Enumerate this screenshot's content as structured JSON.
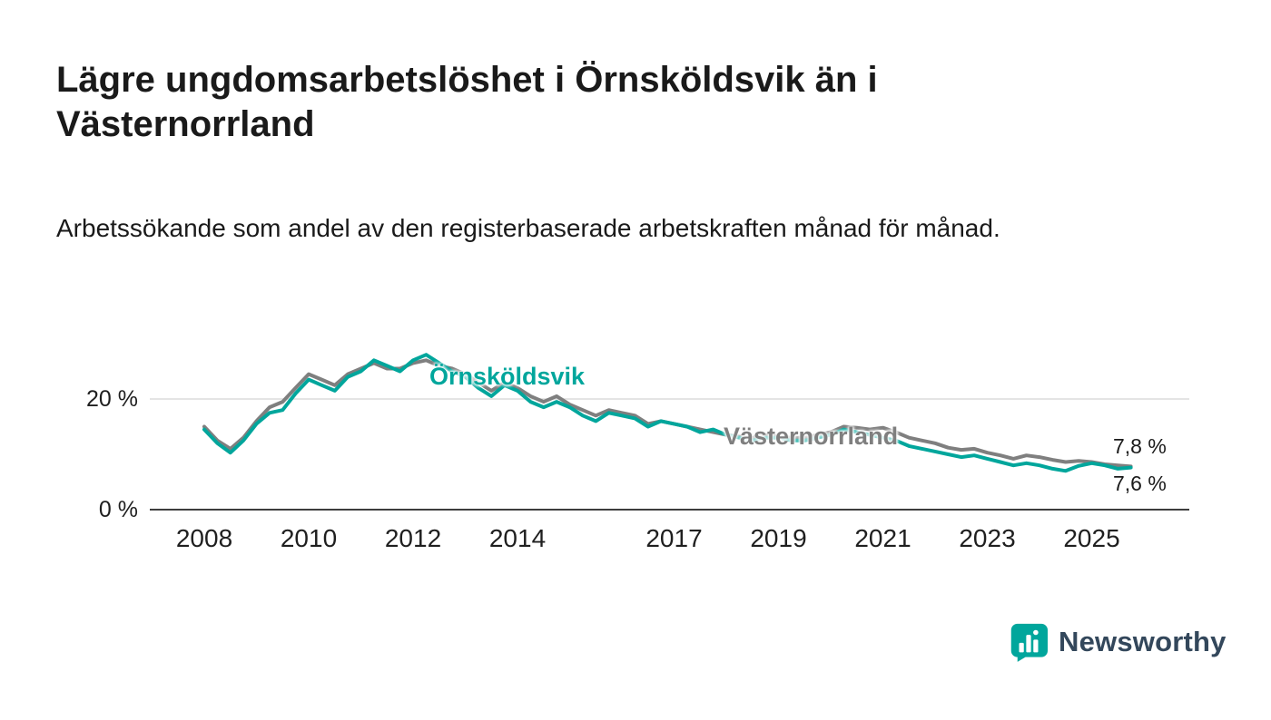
{
  "header": {
    "title": "Lägre ungdomsarbetslöshet i Örnsköldsvik än i Västernorrland",
    "subtitle": "Arbetssökande som andel av den registerbaserade arbetskraften månad för månad."
  },
  "chart_data": {
    "type": "line",
    "title": "Lägre ungdomsarbetslöshet i Örnsköldsvik än i Västernorrland",
    "subtitle": "Arbetssökande som andel av den registerbaserade arbetskraften månad för månad.",
    "unit": "%",
    "xlim": [
      2007.9,
      2026.3
    ],
    "ylim": [
      0,
      32
    ],
    "grid": "horizontal line at 20 % only",
    "legend": "inline series labels on chart",
    "x_ticks": [
      2008,
      2010,
      2012,
      2014,
      2017,
      2019,
      2021,
      2023,
      2025
    ],
    "y_ticks": [
      {
        "value": 0,
        "label": "0 %"
      },
      {
        "value": 20,
        "label": "20 %"
      }
    ],
    "x": [
      2008,
      2008.25,
      2008.5,
      2008.75,
      2009,
      2009.25,
      2009.5,
      2009.75,
      2010,
      2010.25,
      2010.5,
      2010.75,
      2011,
      2011.25,
      2011.5,
      2011.75,
      2012,
      2012.25,
      2012.5,
      2012.75,
      2013,
      2013.25,
      2013.5,
      2013.75,
      2014,
      2014.25,
      2014.5,
      2014.75,
      2015,
      2015.25,
      2015.5,
      2015.75,
      2016,
      2016.25,
      2016.5,
      2016.75,
      2017,
      2017.25,
      2017.5,
      2017.75,
      2018,
      2018.25,
      2018.5,
      2018.75,
      2019,
      2019.25,
      2019.5,
      2019.75,
      2020,
      2020.25,
      2020.5,
      2020.75,
      2021,
      2021.25,
      2021.5,
      2021.75,
      2022,
      2022.25,
      2022.5,
      2022.75,
      2023,
      2023.25,
      2023.5,
      2023.75,
      2024,
      2024.25,
      2024.5,
      2024.75,
      2025,
      2025.25,
      2025.5,
      2025.75
    ],
    "series": [
      {
        "name": "Örnsköldsvik",
        "color": "#00a69c",
        "end_label": "7,6 %",
        "values": [
          14.5,
          12.0,
          10.3,
          12.5,
          15.5,
          17.5,
          18.0,
          21.0,
          23.5,
          22.5,
          21.5,
          24.0,
          25.0,
          27.0,
          26.0,
          25.0,
          27.0,
          28.0,
          26.5,
          25.0,
          24.0,
          22.0,
          20.5,
          22.5,
          21.5,
          19.5,
          18.5,
          19.5,
          18.5,
          17.0,
          16.0,
          17.5,
          17.0,
          16.5,
          15.0,
          16.0,
          15.5,
          15.0,
          14.0,
          14.5,
          13.5,
          13.0,
          12.5,
          13.0,
          13.0,
          12.5,
          12.5,
          13.0,
          13.5,
          14.5,
          14.0,
          13.5,
          13.0,
          12.5,
          11.5,
          11.0,
          10.5,
          10.0,
          9.5,
          9.8,
          9.2,
          8.6,
          8.0,
          8.4,
          8.0,
          7.4,
          7.0,
          7.9,
          8.4,
          8.0,
          7.4,
          7.6
        ]
      },
      {
        "name": "Västernorrland",
        "color": "#7f7f7f",
        "end_label": "7,8 %",
        "values": [
          15.0,
          12.5,
          11.0,
          13.0,
          16.0,
          18.5,
          19.5,
          22.0,
          24.5,
          23.5,
          22.5,
          24.5,
          25.5,
          26.5,
          25.5,
          25.5,
          26.5,
          27.0,
          26.0,
          25.5,
          24.5,
          23.0,
          21.5,
          23.0,
          22.0,
          20.5,
          19.5,
          20.5,
          19.0,
          18.0,
          17.0,
          18.0,
          17.5,
          17.0,
          15.5,
          16.0,
          15.5,
          15.0,
          14.5,
          14.0,
          13.5,
          13.2,
          13.0,
          13.5,
          13.2,
          13.0,
          13.0,
          13.5,
          14.0,
          15.0,
          14.8,
          14.5,
          14.8,
          14.0,
          13.0,
          12.5,
          12.0,
          11.2,
          10.8,
          11.0,
          10.3,
          9.8,
          9.2,
          9.8,
          9.5,
          9.0,
          8.6,
          8.8,
          8.6,
          8.2,
          8.0,
          7.8
        ]
      }
    ]
  },
  "branding": {
    "name": "Newsworthy",
    "icon": "newsworthy-logo-icon",
    "icon_color": "#00a69c",
    "text_color": "#33475b"
  }
}
